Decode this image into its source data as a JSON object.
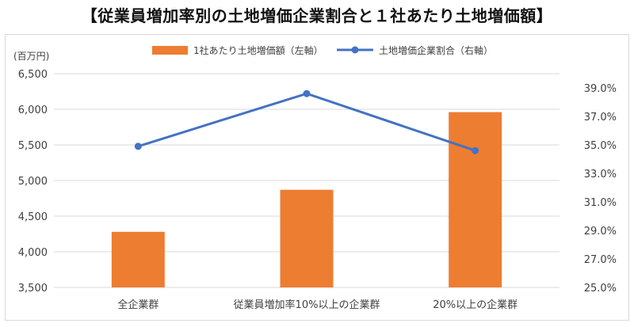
{
  "title": "【従業員増加率別の土地増価企業割合と１社あたり土地増価額】",
  "chart_data": {
    "type": "bar",
    "categories": [
      "全企業群",
      "従業員増加率10%以上の企業群",
      "20%以上の企業群"
    ],
    "series": [
      {
        "name": "1社あたり土地増価額（左軸）",
        "type": "bar",
        "axis": "left",
        "values": [
          4280,
          4870,
          5960
        ],
        "color": "#ed7d31"
      },
      {
        "name": "土地増価企業割合（右軸）",
        "type": "line",
        "axis": "right",
        "values": [
          34.9,
          38.6,
          34.6
        ],
        "color": "#4472c4"
      }
    ],
    "left_axis": {
      "unit": "(百万円)",
      "min": 3500,
      "max": 6500,
      "step": 500,
      "ticks": [
        "3,500",
        "4,000",
        "4,500",
        "5,000",
        "5,500",
        "6,000",
        "6,500"
      ]
    },
    "right_axis": {
      "min": 25,
      "max": 40,
      "step": 2,
      "ticks": [
        "25.0%",
        "27.0%",
        "29.0%",
        "31.0%",
        "33.0%",
        "35.0%",
        "37.0%",
        "39.0%"
      ]
    },
    "legend_position": "top",
    "grid": "horizontal"
  }
}
